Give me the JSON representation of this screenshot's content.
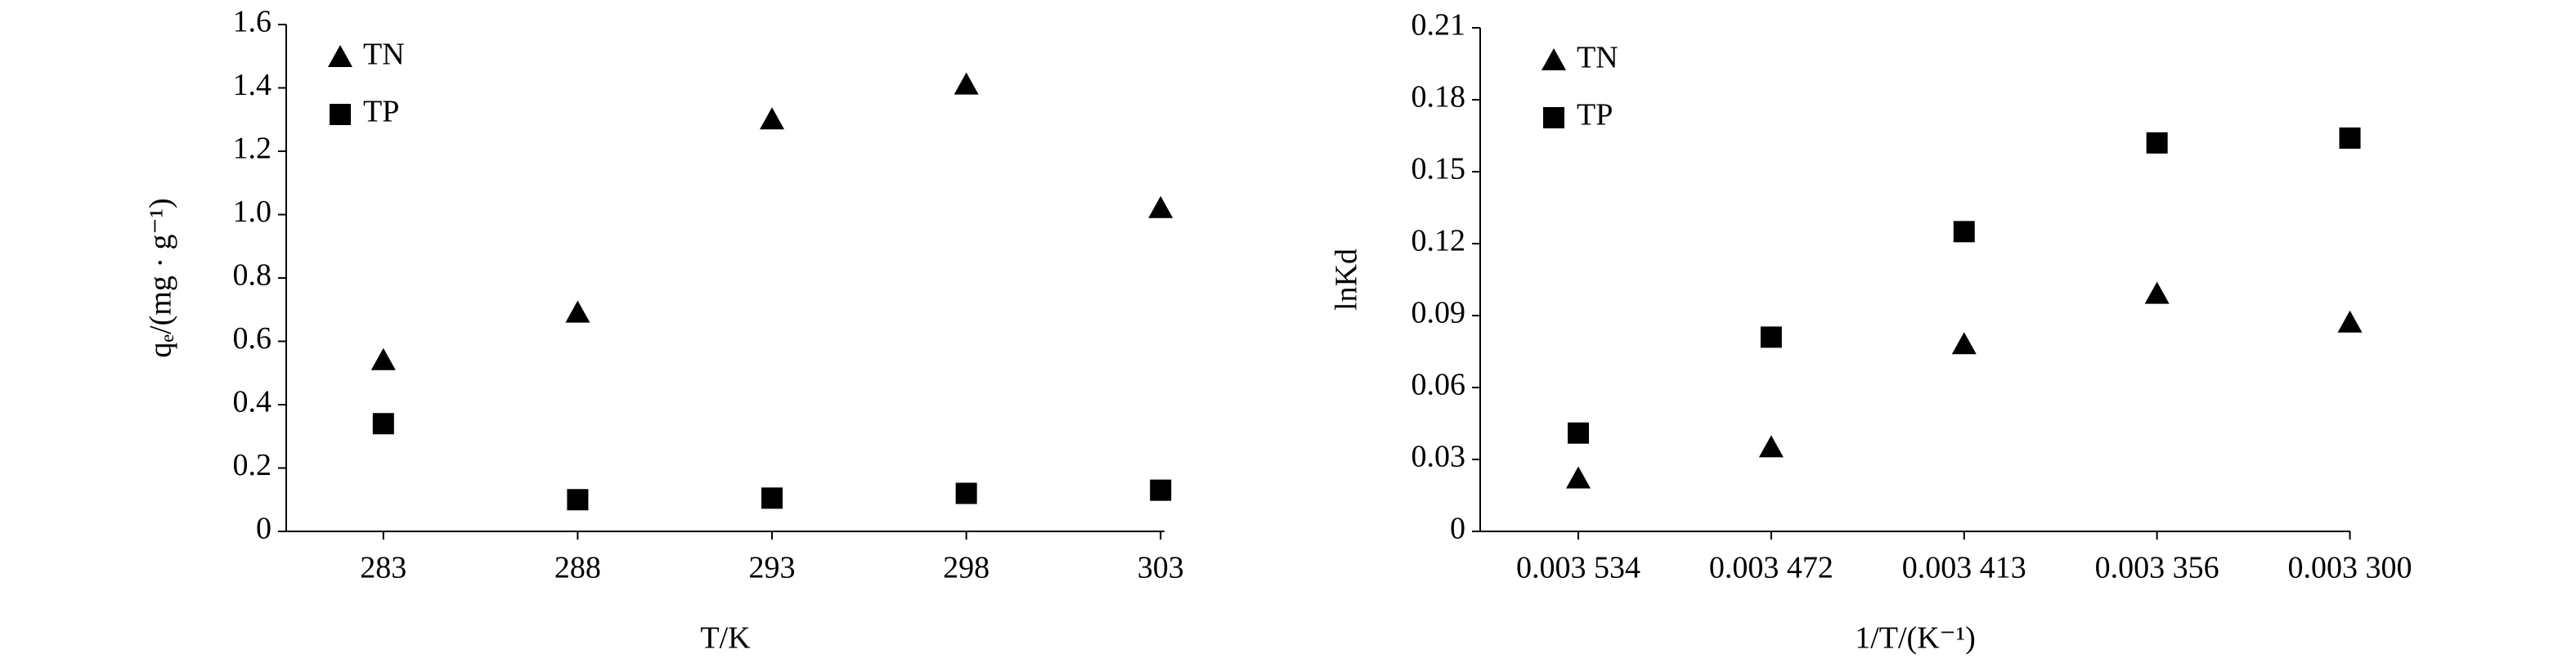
{
  "chart_data": [
    {
      "type": "scatter",
      "x": [
        283,
        288,
        293,
        298,
        303
      ],
      "xlim": [
        280.5,
        303.1
      ],
      "xticks": [
        283,
        288,
        293,
        298,
        303
      ],
      "ylim": [
        0,
        1.6
      ],
      "yticks": [
        0,
        {
          "value": 0.2,
          "label": "0.2"
        },
        0.4,
        0.6,
        0.8,
        {
          "value": 1,
          "label": "1.0"
        },
        1.2,
        1.4,
        1.6
      ],
      "x_label": "T/K",
      "y_label": "qₑ/(mg · g⁻¹)",
      "legend": "top-left",
      "series": [
        {
          "name": "TN",
          "color": "#000000",
          "marker": "triangle",
          "values": [
            0.54,
            0.69,
            1.3,
            1.41,
            1.02
          ]
        },
        {
          "name": "TP",
          "color": "#000000",
          "marker": "square",
          "values": [
            0.34,
            0.1,
            0.105,
            0.12,
            0.13
          ]
        }
      ]
    },
    {
      "type": "scatter",
      "categories": [
        "0.003 534",
        "0.003 472",
        "0.003 413",
        "0.003 356",
        "0.003 300"
      ],
      "ylim": [
        0,
        0.21
      ],
      "yticks": [
        0,
        0.03,
        0.06,
        0.09,
        0.12,
        0.15,
        0.18,
        0.21
      ],
      "x_label": "1/T/(K⁻¹)",
      "y_label": "lnKd",
      "legend": "top-left",
      "series": [
        {
          "name": "TN",
          "color": "#000000",
          "marker": "triangle",
          "values": [
            0.022,
            0.035,
            0.078,
            0.099,
            0.087
          ]
        },
        {
          "name": "TP",
          "color": "#000000",
          "marker": "square",
          "values": [
            0.041,
            0.081,
            0.125,
            0.162,
            0.164
          ]
        }
      ]
    }
  ]
}
